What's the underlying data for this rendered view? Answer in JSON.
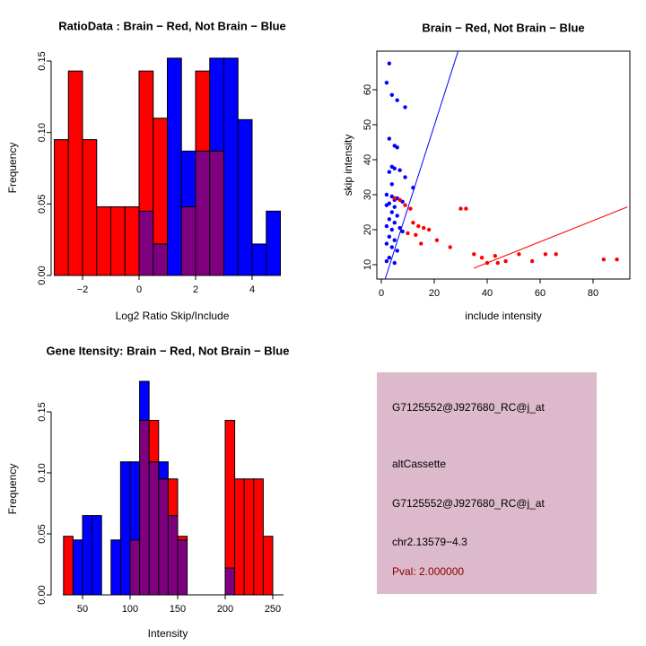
{
  "colors": {
    "red": "#FF0000",
    "blue": "#0000FF",
    "overlap": "#7F007F",
    "info_panel_bg": "#DCB9CB",
    "pval_text": "#8B0000",
    "axis": "#000000"
  },
  "chart_data": [
    {
      "id": "ratio-histogram",
      "type": "bar",
      "title": "RatioData : Brain − Red, Not Brain − Blue",
      "xlabel": "Log2 Ratio Skip/Include",
      "ylabel": "Frequency",
      "bin_start": -3,
      "bin_width": 0.5,
      "xlim": [
        -3.1,
        5.2
      ],
      "ylim": [
        0,
        0.155
      ],
      "xticks": [
        {
          "v": -2,
          "label": "−2"
        },
        {
          "v": 0,
          "label": "0"
        },
        {
          "v": 2,
          "label": "2"
        },
        {
          "v": 4,
          "label": "4"
        }
      ],
      "yticks": [
        {
          "v": 0,
          "label": "0.00"
        },
        {
          "v": 0.05,
          "label": "0.05"
        },
        {
          "v": 0.1,
          "label": "0.10"
        },
        {
          "v": 0.15,
          "label": "0.15"
        }
      ],
      "series": [
        {
          "name": "Brain",
          "color": "#FF0000",
          "values": [
            0.095,
            0.143,
            0.095,
            0.048,
            0.048,
            0.048,
            0.143,
            0.11,
            0,
            0.048,
            0.143,
            0.087,
            0,
            0,
            0,
            0
          ]
        },
        {
          "name": "Not Brain",
          "color": "#0000FF",
          "values": [
            0,
            0,
            0,
            0,
            0,
            0,
            0.045,
            0.022,
            0.152,
            0.087,
            0.087,
            0.152,
            0.152,
            0.109,
            0.022,
            0.045
          ]
        }
      ]
    },
    {
      "id": "intensity-scatter",
      "type": "scatter",
      "title": "Brain − Red, Not Brain − Blue",
      "xlabel": "include intensity",
      "ylabel": "skip intensity",
      "xlim": [
        -1,
        94
      ],
      "ylim": [
        6,
        71
      ],
      "xticks": [
        {
          "v": 0,
          "label": "0"
        },
        {
          "v": 20,
          "label": "20"
        },
        {
          "v": 40,
          "label": "40"
        },
        {
          "v": 60,
          "label": "60"
        },
        {
          "v": 80,
          "label": "80"
        }
      ],
      "yticks": [
        {
          "v": 10,
          "label": "10"
        },
        {
          "v": 20,
          "label": "20"
        },
        {
          "v": 30,
          "label": "30"
        },
        {
          "v": 40,
          "label": "40"
        },
        {
          "v": 50,
          "label": "50"
        },
        {
          "v": 60,
          "label": "60"
        }
      ],
      "series": [
        {
          "name": "Not Brain",
          "color": "#0000FF",
          "points": [
            [
              3,
              67.5
            ],
            [
              2,
              62
            ],
            [
              4,
              58.5
            ],
            [
              6,
              57
            ],
            [
              9,
              55
            ],
            [
              3,
              46
            ],
            [
              5,
              44
            ],
            [
              6,
              43.5
            ],
            [
              4,
              38
            ],
            [
              5,
              37.5
            ],
            [
              7,
              37
            ],
            [
              3,
              36.5
            ],
            [
              9,
              35
            ],
            [
              12,
              32
            ],
            [
              4,
              33
            ],
            [
              2,
              30
            ],
            [
              4,
              29.5
            ],
            [
              6,
              29
            ],
            [
              5,
              28.5
            ],
            [
              8,
              28
            ],
            [
              3,
              27.5
            ],
            [
              2,
              27
            ],
            [
              5,
              26.5
            ],
            [
              4,
              25
            ],
            [
              6,
              24
            ],
            [
              3,
              23
            ],
            [
              5,
              22
            ],
            [
              2,
              21
            ],
            [
              7,
              20.5
            ],
            [
              4,
              20
            ],
            [
              8,
              19.5
            ],
            [
              3,
              18
            ],
            [
              5,
              17
            ],
            [
              2,
              16
            ],
            [
              4,
              15
            ],
            [
              6,
              14
            ],
            [
              3,
              12
            ],
            [
              2,
              11
            ],
            [
              5,
              10.5
            ]
          ]
        },
        {
          "name": "Brain",
          "color": "#FF0000",
          "points": [
            [
              5,
              29
            ],
            [
              7,
              28.5
            ],
            [
              9,
              27
            ],
            [
              11,
              26
            ],
            [
              30,
              26
            ],
            [
              32,
              26
            ],
            [
              12,
              22
            ],
            [
              14,
              21
            ],
            [
              16,
              20.5
            ],
            [
              18,
              20
            ],
            [
              10,
              19
            ],
            [
              13,
              18.5
            ],
            [
              21,
              17
            ],
            [
              15,
              16
            ],
            [
              26,
              15
            ],
            [
              35,
              13
            ],
            [
              38,
              12
            ],
            [
              43,
              12.5
            ],
            [
              47,
              11
            ],
            [
              52,
              13
            ],
            [
              57,
              11
            ],
            [
              62,
              13
            ],
            [
              66,
              13
            ],
            [
              84,
              11.5
            ],
            [
              89,
              11.5
            ],
            [
              40,
              10.5
            ],
            [
              44,
              10.5
            ]
          ]
        }
      ],
      "lines": [
        {
          "name": "not-brain-fit",
          "color": "#0000FF",
          "x1": 1.5,
          "y1": 6,
          "x2": 29,
          "y2": 71
        },
        {
          "name": "brain-fit",
          "color": "#FF0000",
          "x1": 35,
          "y1": 9,
          "x2": 93,
          "y2": 26.5
        }
      ]
    },
    {
      "id": "gene-intensity-histogram",
      "type": "bar",
      "title": "Gene Itensity: Brain − Red, Not Brain − Blue",
      "xlabel": "Intensity",
      "ylabel": "Frequency",
      "bin_start": 30,
      "bin_width": 10,
      "xlim": [
        25,
        265
      ],
      "ylim": [
        0,
        0.18
      ],
      "xticks": [
        {
          "v": 50,
          "label": "50"
        },
        {
          "v": 100,
          "label": "100"
        },
        {
          "v": 150,
          "label": "150"
        },
        {
          "v": 200,
          "label": "200"
        },
        {
          "v": 250,
          "label": "250"
        }
      ],
      "yticks": [
        {
          "v": 0,
          "label": "0.00"
        },
        {
          "v": 0.05,
          "label": "0.05"
        },
        {
          "v": 0.1,
          "label": "0.10"
        },
        {
          "v": 0.15,
          "label": "0.15"
        }
      ],
      "series": [
        {
          "name": "Brain",
          "color": "#FF0000",
          "values": [
            0.048,
            0,
            0,
            0,
            0,
            0,
            0,
            0.045,
            0.143,
            0.143,
            0.095,
            0.095,
            0.048,
            0,
            0,
            0,
            0,
            0.143,
            0.095,
            0.095,
            0.095,
            0.048,
            0
          ]
        },
        {
          "name": "Not Brain",
          "color": "#0000FF",
          "values": [
            0,
            0.045,
            0.065,
            0.065,
            0,
            0.045,
            0.109,
            0.109,
            0.175,
            0.109,
            0.109,
            0.065,
            0.045,
            0,
            0,
            0,
            0,
            0.022,
            0,
            0,
            0,
            0,
            0
          ]
        }
      ]
    }
  ],
  "info_panel": {
    "lines": [
      {
        "text": "G7125552@J927680_RC@j_at",
        "color": "#000000"
      },
      {
        "text": "altCassette",
        "color": "#000000"
      },
      {
        "text": "G7125552@J927680_RC@j_at",
        "color": "#000000"
      },
      {
        "text": "chr2.13579−4.3",
        "color": "#000000"
      },
      {
        "text": "Pval: 2.000000",
        "color": "#8B0000"
      }
    ]
  }
}
